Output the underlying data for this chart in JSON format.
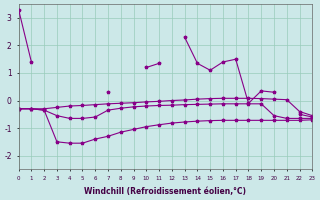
{
  "xlabel": "Windchill (Refroidissement éolien,°C)",
  "bg_color": "#cce8e8",
  "grid_color": "#99ccbb",
  "line_color": "#880088",
  "ylim": [
    -2.5,
    3.5
  ],
  "xlim": [
    0,
    23
  ],
  "yticks": [
    -2,
    -1,
    0,
    1,
    2,
    3
  ],
  "x_zigzag": [
    0,
    1,
    2,
    3,
    4,
    5,
    6,
    7,
    8,
    9,
    10,
    11,
    12,
    13,
    14,
    15,
    16,
    17,
    18,
    19,
    20,
    21,
    22,
    23
  ],
  "y_zigzag": [
    3.3,
    1.4,
    null,
    null,
    null,
    null,
    null,
    0.3,
    null,
    null,
    1.2,
    1.35,
    null,
    2.3,
    1.35,
    1.1,
    1.4,
    1.5,
    -0.1,
    0.35,
    0.3,
    null,
    -0.5,
    -0.6
  ],
  "x_upper": [
    0,
    1,
    2,
    3,
    4,
    5,
    6,
    7,
    8,
    9,
    10,
    11,
    12,
    13,
    14,
    15,
    16,
    17,
    18,
    19,
    20,
    21,
    22,
    23
  ],
  "y_upper": [
    -0.3,
    -0.3,
    -0.3,
    -0.25,
    -0.2,
    -0.18,
    -0.15,
    -0.12,
    -0.1,
    -0.08,
    -0.05,
    -0.03,
    0.0,
    0.02,
    0.05,
    0.07,
    0.08,
    0.08,
    0.08,
    0.07,
    0.05,
    0.03,
    -0.4,
    -0.55
  ],
  "x_middle": [
    0,
    1,
    2,
    3,
    4,
    5,
    6,
    7,
    8,
    9,
    10,
    11,
    12,
    13,
    14,
    15,
    16,
    17,
    18,
    19,
    20,
    21,
    22,
    23
  ],
  "y_middle": [
    -0.3,
    -0.3,
    -0.35,
    -0.55,
    -0.65,
    -0.65,
    -0.6,
    -0.35,
    -0.28,
    -0.23,
    -0.2,
    -0.18,
    -0.17,
    -0.15,
    -0.14,
    -0.13,
    -0.12,
    -0.12,
    -0.12,
    -0.12,
    -0.55,
    -0.65,
    -0.65,
    -0.65
  ],
  "x_lower": [
    0,
    1,
    2,
    3,
    4,
    5,
    6,
    7,
    8,
    9,
    10,
    11,
    12,
    13,
    14,
    15,
    16,
    17,
    18,
    19,
    20,
    21,
    22,
    23
  ],
  "y_lower": [
    -0.3,
    -0.3,
    -0.35,
    -1.5,
    -1.55,
    -1.55,
    -1.4,
    -1.3,
    -1.15,
    -1.05,
    -0.95,
    -0.88,
    -0.82,
    -0.78,
    -0.75,
    -0.73,
    -0.72,
    -0.72,
    -0.72,
    -0.72,
    -0.72,
    -0.72,
    -0.72,
    -0.7
  ]
}
